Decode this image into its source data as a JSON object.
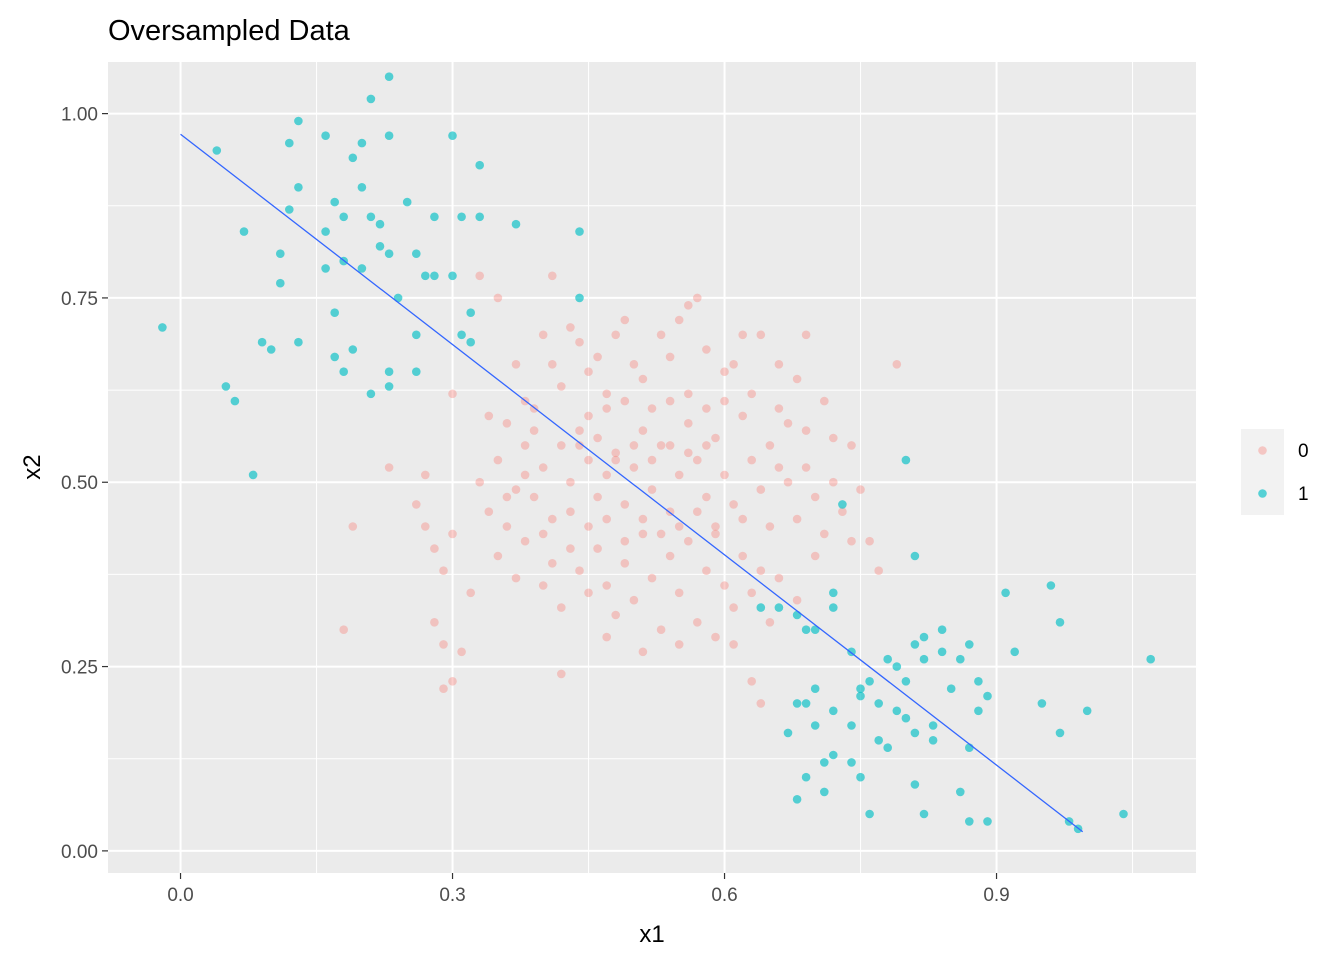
{
  "colors": {
    "class0": "#F8766D",
    "class1": "#00BFC4",
    "line": "#3366FF",
    "panel": "#EBEBEB",
    "grid": "#FFFFFF",
    "tick_text": "#4D4D4D"
  },
  "chart_data": {
    "type": "scatter",
    "title": "Oversampled Data",
    "xlabel": "x1",
    "ylabel": "x2",
    "xlim": [
      -0.08,
      1.12
    ],
    "ylim": [
      -0.03,
      1.07
    ],
    "x_ticks": [
      0.0,
      0.3,
      0.6,
      0.9
    ],
    "x_tick_labels": [
      "0.0",
      "0.3",
      "0.6",
      "0.9"
    ],
    "y_ticks": [
      0.0,
      0.25,
      0.5,
      0.75,
      1.0
    ],
    "y_tick_labels": [
      "0.00",
      "0.25",
      "0.50",
      "0.75",
      "1.00"
    ],
    "grid": true,
    "legend": {
      "position": "right",
      "entries": [
        "0",
        "1"
      ]
    },
    "decision_line": {
      "x": [
        0.0,
        0.995
      ],
      "y": [
        0.972,
        0.026
      ]
    },
    "series": [
      {
        "name": "0",
        "points": [
          [
            0.3,
            0.62
          ],
          [
            0.33,
            0.78
          ],
          [
            0.34,
            0.59
          ],
          [
            0.35,
            0.75
          ],
          [
            0.37,
            0.66
          ],
          [
            0.38,
            0.61
          ],
          [
            0.39,
            0.57
          ],
          [
            0.4,
            0.7
          ],
          [
            0.41,
            0.78
          ],
          [
            0.41,
            0.66
          ],
          [
            0.43,
            0.71
          ],
          [
            0.44,
            0.69
          ],
          [
            0.45,
            0.65
          ],
          [
            0.46,
            0.67
          ],
          [
            0.47,
            0.62
          ],
          [
            0.48,
            0.7
          ],
          [
            0.49,
            0.72
          ],
          [
            0.5,
            0.66
          ],
          [
            0.51,
            0.64
          ],
          [
            0.53,
            0.7
          ],
          [
            0.54,
            0.67
          ],
          [
            0.55,
            0.72
          ],
          [
            0.56,
            0.74
          ],
          [
            0.57,
            0.75
          ],
          [
            0.58,
            0.68
          ],
          [
            0.6,
            0.65
          ],
          [
            0.61,
            0.66
          ],
          [
            0.62,
            0.7
          ],
          [
            0.64,
            0.7
          ],
          [
            0.66,
            0.66
          ],
          [
            0.68,
            0.64
          ],
          [
            0.69,
            0.7
          ],
          [
            0.71,
            0.61
          ],
          [
            0.72,
            0.56
          ],
          [
            0.74,
            0.55
          ],
          [
            0.75,
            0.49
          ],
          [
            0.76,
            0.42
          ],
          [
            0.77,
            0.38
          ],
          [
            0.79,
            0.66
          ],
          [
            0.33,
            0.5
          ],
          [
            0.34,
            0.46
          ],
          [
            0.35,
            0.53
          ],
          [
            0.36,
            0.44
          ],
          [
            0.37,
            0.49
          ],
          [
            0.38,
            0.55
          ],
          [
            0.39,
            0.48
          ],
          [
            0.4,
            0.52
          ],
          [
            0.41,
            0.45
          ],
          [
            0.42,
            0.55
          ],
          [
            0.43,
            0.5
          ],
          [
            0.44,
            0.57
          ],
          [
            0.45,
            0.53
          ],
          [
            0.46,
            0.48
          ],
          [
            0.47,
            0.51
          ],
          [
            0.48,
            0.54
          ],
          [
            0.49,
            0.47
          ],
          [
            0.5,
            0.52
          ],
          [
            0.51,
            0.57
          ],
          [
            0.52,
            0.49
          ],
          [
            0.53,
            0.55
          ],
          [
            0.54,
            0.46
          ],
          [
            0.55,
            0.51
          ],
          [
            0.56,
            0.58
          ],
          [
            0.57,
            0.53
          ],
          [
            0.58,
            0.48
          ],
          [
            0.59,
            0.56
          ],
          [
            0.6,
            0.51
          ],
          [
            0.61,
            0.47
          ],
          [
            0.62,
            0.59
          ],
          [
            0.63,
            0.53
          ],
          [
            0.64,
            0.49
          ],
          [
            0.65,
            0.55
          ],
          [
            0.66,
            0.52
          ],
          [
            0.67,
            0.58
          ],
          [
            0.68,
            0.45
          ],
          [
            0.69,
            0.52
          ],
          [
            0.7,
            0.48
          ],
          [
            0.71,
            0.43
          ],
          [
            0.72,
            0.5
          ],
          [
            0.73,
            0.46
          ],
          [
            0.74,
            0.42
          ],
          [
            0.35,
            0.4
          ],
          [
            0.37,
            0.37
          ],
          [
            0.38,
            0.42
          ],
          [
            0.4,
            0.36
          ],
          [
            0.41,
            0.39
          ],
          [
            0.42,
            0.33
          ],
          [
            0.43,
            0.41
          ],
          [
            0.44,
            0.38
          ],
          [
            0.45,
            0.35
          ],
          [
            0.46,
            0.41
          ],
          [
            0.47,
            0.36
          ],
          [
            0.48,
            0.32
          ],
          [
            0.49,
            0.39
          ],
          [
            0.5,
            0.34
          ],
          [
            0.51,
            0.43
          ],
          [
            0.52,
            0.37
          ],
          [
            0.53,
            0.3
          ],
          [
            0.54,
            0.4
          ],
          [
            0.55,
            0.35
          ],
          [
            0.56,
            0.42
          ],
          [
            0.57,
            0.31
          ],
          [
            0.58,
            0.38
          ],
          [
            0.59,
            0.44
          ],
          [
            0.6,
            0.36
          ],
          [
            0.61,
            0.33
          ],
          [
            0.62,
            0.4
          ],
          [
            0.63,
            0.35
          ],
          [
            0.64,
            0.38
          ],
          [
            0.65,
            0.31
          ],
          [
            0.66,
            0.37
          ],
          [
            0.68,
            0.34
          ],
          [
            0.7,
            0.4
          ],
          [
            0.32,
            0.35
          ],
          [
            0.3,
            0.43
          ],
          [
            0.29,
            0.38
          ],
          [
            0.28,
            0.41
          ],
          [
            0.27,
            0.51
          ],
          [
            0.27,
            0.44
          ],
          [
            0.26,
            0.47
          ],
          [
            0.23,
            0.52
          ],
          [
            0.19,
            0.44
          ],
          [
            0.18,
            0.3
          ],
          [
            0.28,
            0.31
          ],
          [
            0.29,
            0.28
          ],
          [
            0.29,
            0.22
          ],
          [
            0.3,
            0.23
          ],
          [
            0.31,
            0.27
          ],
          [
            0.42,
            0.24
          ],
          [
            0.47,
            0.29
          ],
          [
            0.51,
            0.27
          ],
          [
            0.55,
            0.28
          ],
          [
            0.59,
            0.29
          ],
          [
            0.61,
            0.28
          ],
          [
            0.63,
            0.23
          ],
          [
            0.64,
            0.2
          ],
          [
            0.45,
            0.59
          ],
          [
            0.47,
            0.6
          ],
          [
            0.49,
            0.61
          ],
          [
            0.52,
            0.6
          ],
          [
            0.54,
            0.61
          ],
          [
            0.56,
            0.62
          ],
          [
            0.58,
            0.6
          ],
          [
            0.44,
            0.55
          ],
          [
            0.46,
            0.56
          ],
          [
            0.48,
            0.53
          ],
          [
            0.5,
            0.55
          ],
          [
            0.52,
            0.53
          ],
          [
            0.54,
            0.55
          ],
          [
            0.56,
            0.54
          ],
          [
            0.58,
            0.55
          ],
          [
            0.43,
            0.46
          ],
          [
            0.45,
            0.44
          ],
          [
            0.47,
            0.45
          ],
          [
            0.49,
            0.42
          ],
          [
            0.51,
            0.45
          ],
          [
            0.53,
            0.43
          ],
          [
            0.55,
            0.44
          ],
          [
            0.57,
            0.46
          ],
          [
            0.59,
            0.43
          ],
          [
            0.36,
            0.58
          ],
          [
            0.39,
            0.6
          ],
          [
            0.42,
            0.63
          ],
          [
            0.6,
            0.61
          ],
          [
            0.63,
            0.62
          ],
          [
            0.66,
            0.6
          ],
          [
            0.69,
            0.57
          ],
          [
            0.67,
            0.5
          ],
          [
            0.65,
            0.44
          ],
          [
            0.62,
            0.45
          ],
          [
            0.4,
            0.43
          ],
          [
            0.38,
            0.51
          ],
          [
            0.36,
            0.48
          ]
        ]
      },
      {
        "name": "1",
        "points": [
          [
            -0.02,
            0.71
          ],
          [
            0.04,
            0.95
          ],
          [
            0.05,
            0.63
          ],
          [
            0.06,
            0.61
          ],
          [
            0.07,
            0.84
          ],
          [
            0.08,
            0.51
          ],
          [
            0.09,
            0.69
          ],
          [
            0.1,
            0.68
          ],
          [
            0.11,
            0.77
          ],
          [
            0.11,
            0.81
          ],
          [
            0.12,
            0.96
          ],
          [
            0.12,
            0.87
          ],
          [
            0.13,
            0.99
          ],
          [
            0.13,
            0.9
          ],
          [
            0.13,
            0.69
          ],
          [
            0.16,
            0.97
          ],
          [
            0.16,
            0.84
          ],
          [
            0.16,
            0.79
          ],
          [
            0.17,
            0.88
          ],
          [
            0.17,
            0.73
          ],
          [
            0.17,
            0.67
          ],
          [
            0.18,
            0.8
          ],
          [
            0.18,
            0.65
          ],
          [
            0.18,
            0.86
          ],
          [
            0.19,
            0.94
          ],
          [
            0.19,
            0.68
          ],
          [
            0.2,
            0.96
          ],
          [
            0.2,
            0.9
          ],
          [
            0.2,
            0.79
          ],
          [
            0.21,
            0.86
          ],
          [
            0.21,
            0.62
          ],
          [
            0.21,
            1.02
          ],
          [
            0.22,
            0.85
          ],
          [
            0.22,
            0.82
          ],
          [
            0.23,
            0.97
          ],
          [
            0.23,
            0.81
          ],
          [
            0.23,
            0.65
          ],
          [
            0.23,
            0.63
          ],
          [
            0.23,
            1.05
          ],
          [
            0.24,
            0.75
          ],
          [
            0.25,
            0.88
          ],
          [
            0.26,
            0.65
          ],
          [
            0.26,
            0.7
          ],
          [
            0.26,
            0.81
          ],
          [
            0.27,
            0.78
          ],
          [
            0.28,
            0.86
          ],
          [
            0.28,
            0.78
          ],
          [
            0.3,
            0.78
          ],
          [
            0.3,
            0.97
          ],
          [
            0.31,
            0.86
          ],
          [
            0.31,
            0.7
          ],
          [
            0.32,
            0.69
          ],
          [
            0.32,
            0.73
          ],
          [
            0.33,
            0.86
          ],
          [
            0.33,
            0.93
          ],
          [
            0.37,
            0.85
          ],
          [
            0.44,
            0.75
          ],
          [
            0.44,
            0.84
          ],
          [
            0.64,
            0.33
          ],
          [
            0.66,
            0.33
          ],
          [
            0.68,
            0.32
          ],
          [
            0.69,
            0.3
          ],
          [
            0.7,
            0.3
          ],
          [
            0.67,
            0.16
          ],
          [
            0.68,
            0.2
          ],
          [
            0.68,
            0.07
          ],
          [
            0.69,
            0.1
          ],
          [
            0.69,
            0.2
          ],
          [
            0.7,
            0.17
          ],
          [
            0.7,
            0.22
          ],
          [
            0.71,
            0.12
          ],
          [
            0.71,
            0.08
          ],
          [
            0.72,
            0.19
          ],
          [
            0.72,
            0.13
          ],
          [
            0.72,
            0.33
          ],
          [
            0.72,
            0.35
          ],
          [
            0.73,
            0.47
          ],
          [
            0.74,
            0.27
          ],
          [
            0.74,
            0.17
          ],
          [
            0.74,
            0.12
          ],
          [
            0.75,
            0.22
          ],
          [
            0.75,
            0.21
          ],
          [
            0.75,
            0.1
          ],
          [
            0.76,
            0.05
          ],
          [
            0.76,
            0.23
          ],
          [
            0.77,
            0.2
          ],
          [
            0.77,
            0.15
          ],
          [
            0.78,
            0.14
          ],
          [
            0.78,
            0.26
          ],
          [
            0.79,
            0.25
          ],
          [
            0.79,
            0.19
          ],
          [
            0.8,
            0.53
          ],
          [
            0.8,
            0.18
          ],
          [
            0.8,
            0.23
          ],
          [
            0.81,
            0.4
          ],
          [
            0.81,
            0.28
          ],
          [
            0.81,
            0.09
          ],
          [
            0.81,
            0.16
          ],
          [
            0.82,
            0.26
          ],
          [
            0.82,
            0.29
          ],
          [
            0.82,
            0.05
          ],
          [
            0.83,
            0.17
          ],
          [
            0.83,
            0.15
          ],
          [
            0.84,
            0.27
          ],
          [
            0.84,
            0.3
          ],
          [
            0.85,
            0.22
          ],
          [
            0.86,
            0.26
          ],
          [
            0.86,
            0.08
          ],
          [
            0.87,
            0.28
          ],
          [
            0.87,
            0.04
          ],
          [
            0.87,
            0.14
          ],
          [
            0.88,
            0.19
          ],
          [
            0.88,
            0.23
          ],
          [
            0.89,
            0.04
          ],
          [
            0.89,
            0.21
          ],
          [
            0.91,
            0.35
          ],
          [
            0.92,
            0.27
          ],
          [
            0.95,
            0.2
          ],
          [
            0.96,
            0.36
          ],
          [
            0.97,
            0.31
          ],
          [
            0.97,
            0.16
          ],
          [
            0.98,
            0.04
          ],
          [
            0.99,
            0.03
          ],
          [
            1.0,
            0.19
          ],
          [
            1.04,
            0.05
          ],
          [
            1.07,
            0.26
          ]
        ]
      }
    ]
  }
}
